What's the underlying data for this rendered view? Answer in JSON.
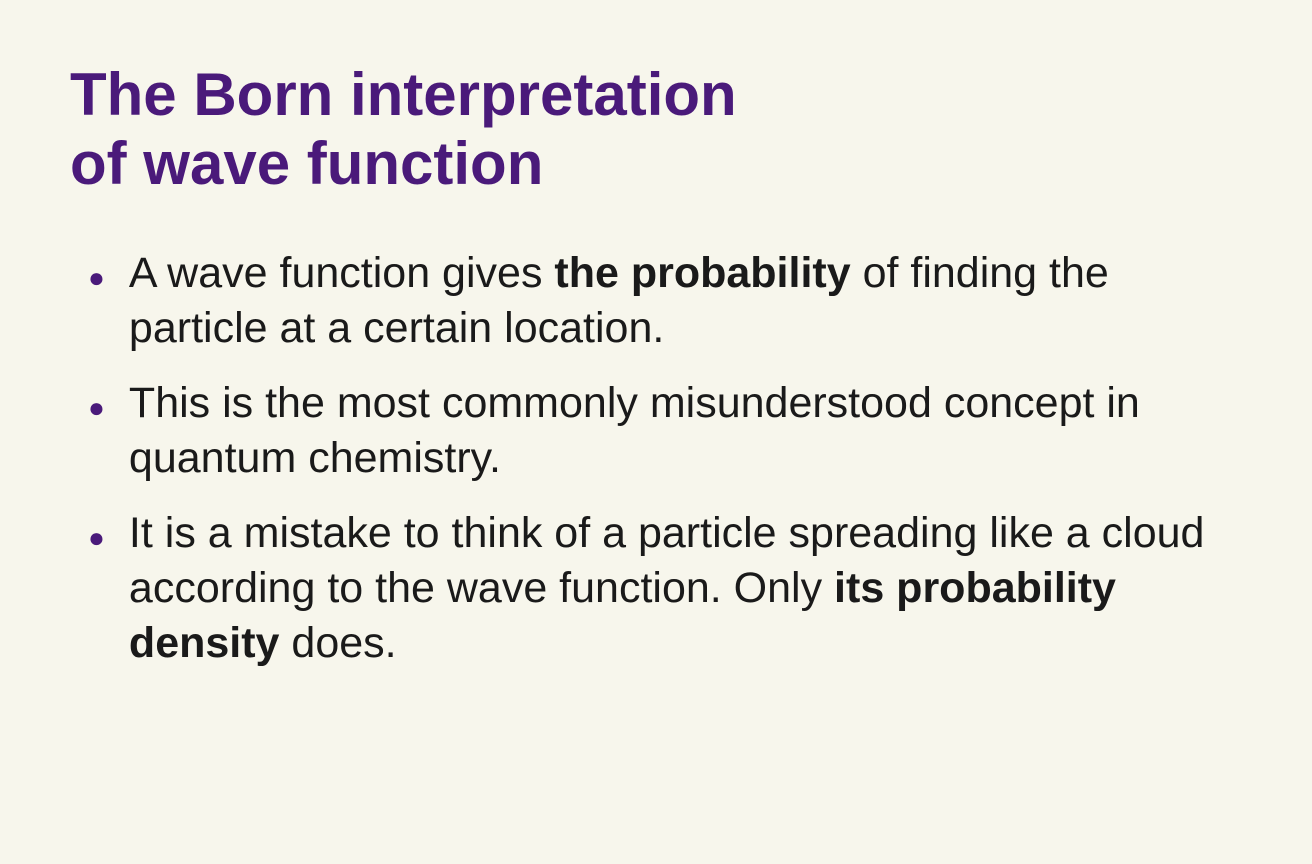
{
  "background_color": "#f7f6ec",
  "title_color": "#4a1a7a",
  "bullet_color": "#4a1a7a",
  "text_color": "#1a1a1a",
  "title": {
    "line1": "The Born interpretation",
    "line2": "of wave function"
  },
  "bullets": [
    {
      "segments": [
        {
          "text": "A wave function gives ",
          "bold": false
        },
        {
          "text": "the probability",
          "bold": true
        },
        {
          "text": " of finding the particle at a certain location.",
          "bold": false
        }
      ]
    },
    {
      "segments": [
        {
          "text": "This is the most commonly misunderstood concept in quantum chemistry.",
          "bold": false
        }
      ]
    },
    {
      "segments": [
        {
          "text": "It is a mistake to think of a particle spreading like a cloud according to the wave function. Only ",
          "bold": false
        },
        {
          "text": "its probability density",
          "bold": true
        },
        {
          "text": " does.",
          "bold": false
        }
      ]
    }
  ]
}
